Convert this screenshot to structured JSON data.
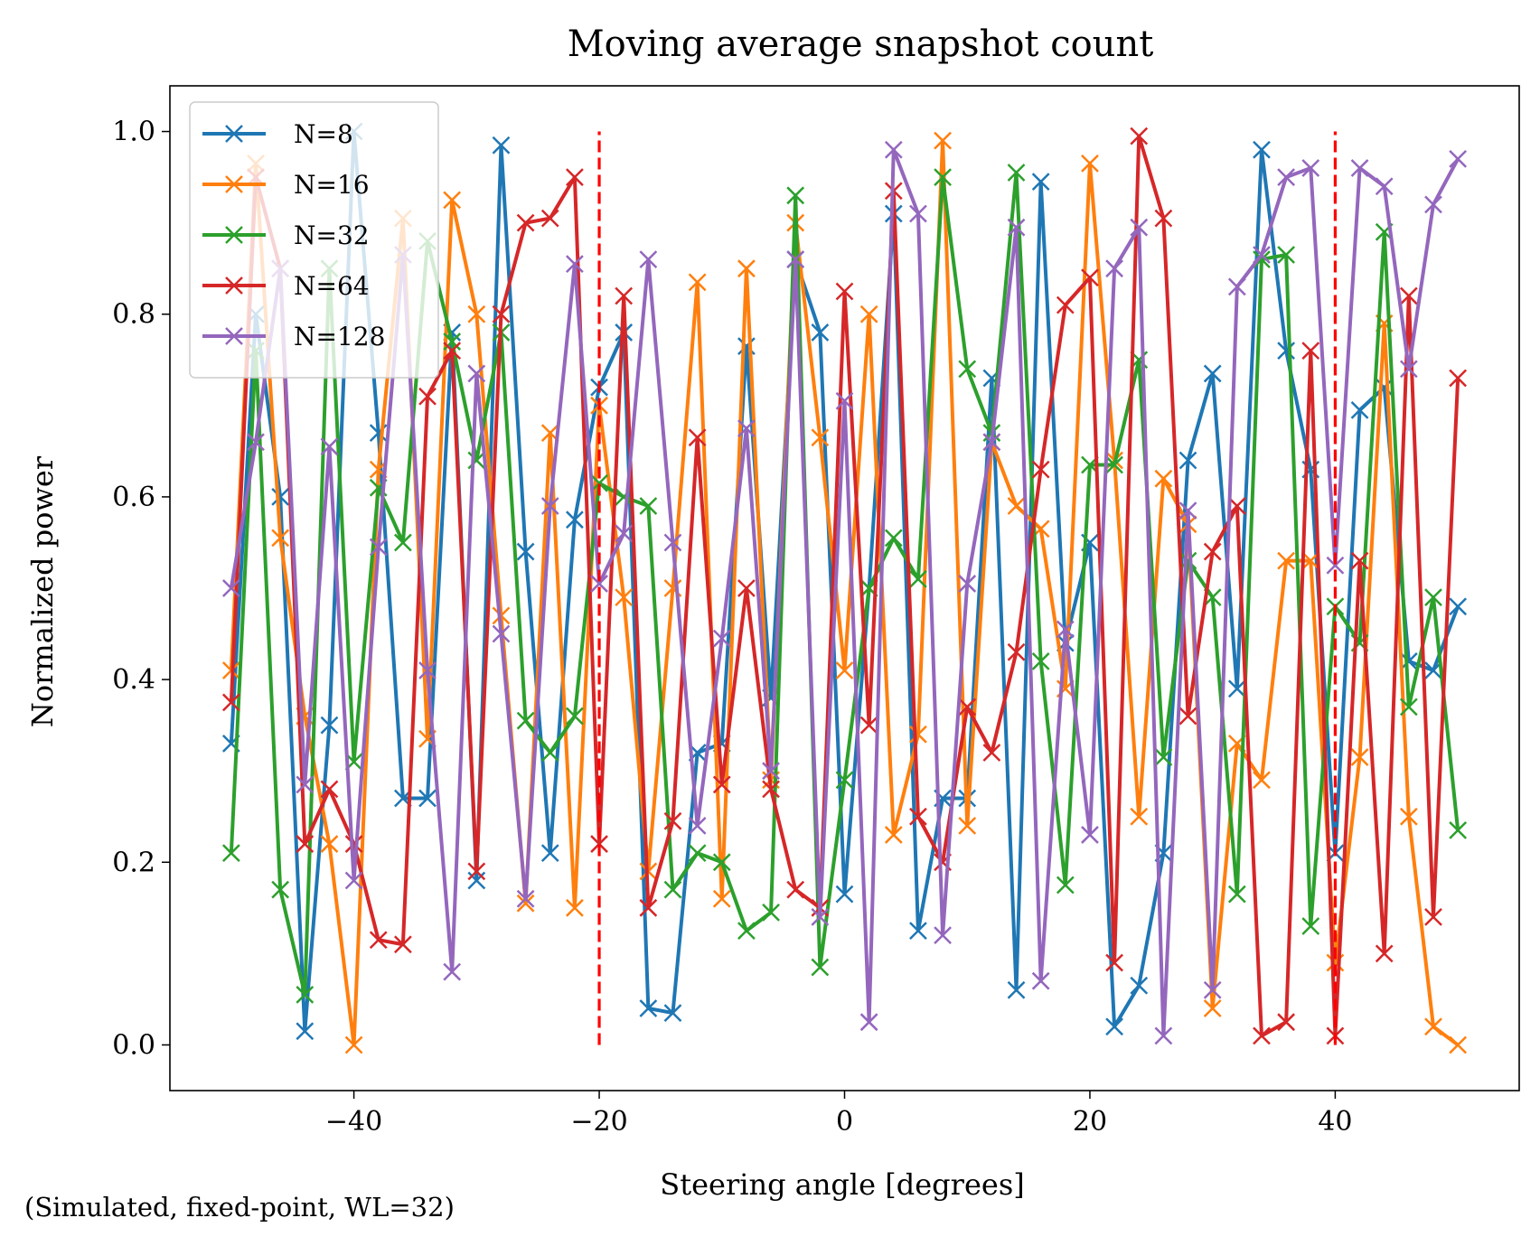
{
  "chart_data": {
    "type": "line",
    "title": "Moving average snapshot count",
    "xlabel": "Steering angle [degrees]",
    "ylabel": "Normalized power",
    "footnote": "(Simulated, fixed-point, WL=32)",
    "xlim": [
      -55,
      55
    ],
    "ylim": [
      -0.05,
      1.05
    ],
    "xticks": [
      -40,
      -20,
      0,
      20,
      40
    ],
    "yticks": [
      0.0,
      0.2,
      0.4,
      0.6,
      0.8,
      1.0
    ],
    "xtick_labels": [
      "−40",
      "−20",
      "0",
      "20",
      "40"
    ],
    "ytick_labels": [
      "0.0",
      "0.2",
      "0.4",
      "0.6",
      "0.8",
      "1.0"
    ],
    "grid": false,
    "legend_position": "top-left",
    "marker": "x",
    "x": [
      -50,
      -48,
      -46,
      -44,
      -42,
      -40,
      -38,
      -36,
      -34,
      -32,
      -30,
      -28,
      -26,
      -24,
      -22,
      -20,
      -18,
      -16,
      -14,
      -12,
      -10,
      -8,
      -6,
      -4,
      -2,
      0,
      2,
      4,
      6,
      8,
      10,
      12,
      14,
      16,
      18,
      20,
      22,
      24,
      26,
      28,
      30,
      32,
      34,
      36,
      38,
      40,
      42,
      44,
      46,
      48,
      50
    ],
    "series": [
      {
        "name": "N=8",
        "color": "#1f77b4",
        "values": [
          0.33,
          0.8,
          0.6,
          0.015,
          0.35,
          1.0,
          0.67,
          0.27,
          0.27,
          0.78,
          0.18,
          0.985,
          0.54,
          0.21,
          0.575,
          0.72,
          0.78,
          0.04,
          0.035,
          0.32,
          0.33,
          0.765,
          0.38,
          0.86,
          0.78,
          0.165,
          0.5,
          0.91,
          0.125,
          0.27,
          0.27,
          0.73,
          0.06,
          0.945,
          0.44,
          0.55,
          0.02,
          0.065,
          0.21,
          0.64,
          0.735,
          0.39,
          0.98,
          0.76,
          0.63,
          0.21,
          0.695,
          0.72,
          0.42,
          0.41,
          0.48
        ]
      },
      {
        "name": "N=16",
        "color": "#ff7f0e",
        "values": [
          0.41,
          0.965,
          0.555,
          0.36,
          0.22,
          0.0,
          0.63,
          0.905,
          0.335,
          0.925,
          0.8,
          0.47,
          0.155,
          0.67,
          0.15,
          0.7,
          0.49,
          0.19,
          0.5,
          0.835,
          0.16,
          0.85,
          0.29,
          0.9,
          0.665,
          0.41,
          0.8,
          0.23,
          0.34,
          0.99,
          0.24,
          0.66,
          0.59,
          0.565,
          0.39,
          0.965,
          0.64,
          0.25,
          0.62,
          0.57,
          0.04,
          0.33,
          0.29,
          0.53,
          0.53,
          0.09,
          0.315,
          0.79,
          0.25,
          0.02,
          0.0
        ]
      },
      {
        "name": "N=32",
        "color": "#2ca02c",
        "values": [
          0.21,
          0.76,
          0.17,
          0.055,
          0.85,
          0.31,
          0.61,
          0.55,
          0.88,
          0.77,
          0.64,
          0.78,
          0.355,
          0.32,
          0.36,
          0.615,
          0.6,
          0.59,
          0.17,
          0.21,
          0.2,
          0.125,
          0.145,
          0.93,
          0.085,
          0.29,
          0.5,
          0.555,
          0.51,
          0.95,
          0.74,
          0.67,
          0.955,
          0.42,
          0.175,
          0.635,
          0.635,
          0.75,
          0.315,
          0.53,
          0.49,
          0.165,
          0.86,
          0.865,
          0.13,
          0.48,
          0.44,
          0.89,
          0.37,
          0.49,
          0.235
        ]
      },
      {
        "name": "N=64",
        "color": "#d62728",
        "values": [
          0.375,
          0.95,
          0.85,
          0.22,
          0.28,
          0.22,
          0.115,
          0.11,
          0.71,
          0.76,
          0.19,
          0.8,
          0.9,
          0.905,
          0.95,
          0.22,
          0.82,
          0.15,
          0.245,
          0.665,
          0.285,
          0.5,
          0.28,
          0.17,
          0.15,
          0.825,
          0.35,
          0.935,
          0.25,
          0.2,
          0.37,
          0.32,
          0.43,
          0.63,
          0.81,
          0.84,
          0.09,
          0.995,
          0.905,
          0.36,
          0.54,
          0.59,
          0.01,
          0.025,
          0.76,
          0.01,
          0.53,
          0.1,
          0.82,
          0.14,
          0.73
        ]
      },
      {
        "name": "N=128",
        "color": "#9467bd",
        "values": [
          0.5,
          0.66,
          0.85,
          0.285,
          0.655,
          0.18,
          0.545,
          0.865,
          0.41,
          0.08,
          0.735,
          0.45,
          0.16,
          0.59,
          0.855,
          0.505,
          0.56,
          0.86,
          0.55,
          0.24,
          0.445,
          0.675,
          0.3,
          0.86,
          0.14,
          0.705,
          0.025,
          0.98,
          0.91,
          0.12,
          0.505,
          0.66,
          0.895,
          0.07,
          0.455,
          0.23,
          0.85,
          0.895,
          0.01,
          0.585,
          0.06,
          0.83,
          0.865,
          0.95,
          0.96,
          0.525,
          0.96,
          0.94,
          0.74,
          0.92,
          0.97
        ]
      }
    ],
    "reference_lines": [
      {
        "x": -20,
        "y_range": [
          0,
          1
        ],
        "color": "#ff0000",
        "style": "dashed"
      },
      {
        "x": 40,
        "y_range": [
          0,
          1
        ],
        "color": "#ff0000",
        "style": "dashed"
      }
    ]
  }
}
